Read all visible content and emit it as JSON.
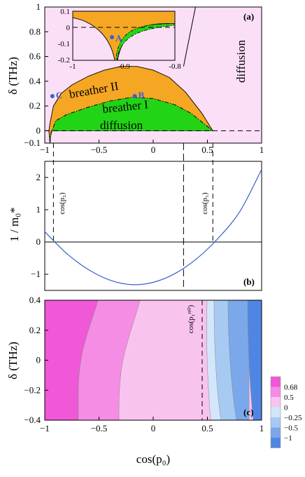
{
  "chart_data": [
    {
      "type": "area",
      "panel_label": "(a)",
      "xlim": [
        -1,
        1
      ],
      "ylim": [
        -0.1,
        1
      ],
      "ylabel": "δ (THz)",
      "x_ticks": [
        "-1",
        "-0.5",
        "0",
        "0.5",
        "1"
      ],
      "y_ticks": [
        "-0.1",
        "0",
        "0.2",
        "0.4",
        "0.6",
        "0.8",
        "1"
      ],
      "regions": [
        "breather II",
        "breather I",
        "diffusion",
        "diffusion"
      ],
      "boundary_breather_II_upper": {
        "x": [
          -0.952,
          -0.92,
          -0.85,
          -0.75,
          -0.6,
          -0.45,
          -0.3,
          -0.15,
          0,
          0.15,
          0.3,
          0.45,
          0.55
        ],
        "y": [
          0.06,
          0.2,
          0.3,
          0.37,
          0.44,
          0.49,
          0.52,
          0.52,
          0.49,
          0.43,
          0.31,
          0.14,
          0
        ]
      },
      "boundary_breather_I_upper": {
        "x": [
          -0.952,
          -0.9,
          -0.8,
          -0.6,
          -0.4,
          -0.2,
          0,
          0.2,
          0.35,
          0.45,
          0.55
        ],
        "y": [
          -0.05,
          0.08,
          0.13,
          0.19,
          0.24,
          0.27,
          0.26,
          0.21,
          0.14,
          0.07,
          0
        ]
      },
      "diffusion_boundary_line": {
        "x": [
          0.28,
          0.39
        ],
        "y": [
          0.52,
          1.0
        ]
      },
      "points": [
        {
          "label": "A",
          "x": -0.9,
          "y": -0.05
        },
        {
          "label": "B",
          "x": -0.17,
          "y": 0.28
        },
        {
          "label": "C",
          "x": -0.93,
          "y": 0.28
        }
      ],
      "inset": {
        "xlim": [
          -1,
          -0.8
        ],
        "ylim": [
          -0.2,
          0.1
        ],
        "x_ticks": [
          "-1",
          "-0.9",
          "-0.8"
        ],
        "y_ticks": [
          "0.1",
          "0",
          "-0.1",
          "-0.2"
        ]
      }
    },
    {
      "type": "line",
      "panel_label": "(b)",
      "xlim": [
        -1,
        1
      ],
      "ylim": [
        -1.5,
        2.5
      ],
      "ylabel": "1 / m₀*",
      "y_ticks": [
        "-1",
        "0",
        "1",
        "2"
      ],
      "x": [
        -1,
        -0.8,
        -0.6,
        -0.4,
        -0.2,
        0,
        0.2,
        0.4,
        0.6,
        0.8,
        1
      ],
      "y": [
        0.32,
        -0.35,
        -0.85,
        -1.18,
        -1.32,
        -1.25,
        -0.98,
        -0.52,
        0.12,
        0.95,
        2.25
      ],
      "vertical_lines": [
        {
          "label": "cos(p₂)",
          "x": -0.92
        },
        {
          "label": "cos(p₁)",
          "x": 0.55
        }
      ]
    },
    {
      "type": "heatmap",
      "panel_label": "(c)",
      "xlim": [
        -1,
        1
      ],
      "ylim": [
        -0.4,
        0.4
      ],
      "xlabel": "cos(p₀)",
      "ylabel": "δ (THz)",
      "x_ticks": [
        "-1",
        "-0.5",
        "0",
        "0.5",
        "1"
      ],
      "y_ticks": [
        "-0.4",
        "-0.2",
        "0",
        "0.2",
        "0.4"
      ],
      "vertical_line": {
        "label": "cos(p₁ᴴ⁰)",
        "x": 0.28
      },
      "colorbar": {
        "labels": [
          "0.68",
          "0.5",
          "0",
          "-0.25",
          "-0.5",
          "-1"
        ],
        "colors": [
          "#f056d6",
          "#f58be4",
          "#f9c3f0",
          "#d2e6fa",
          "#a6c9f3",
          "#7aa7ea",
          "#4f86e3"
        ]
      },
      "band_colors": [
        "#f056d6",
        "#f58be4",
        "#f9c3f0",
        "#d2e6fa",
        "#a6c9f3",
        "#7aa7ea",
        "#4f86e3"
      ]
    }
  ]
}
